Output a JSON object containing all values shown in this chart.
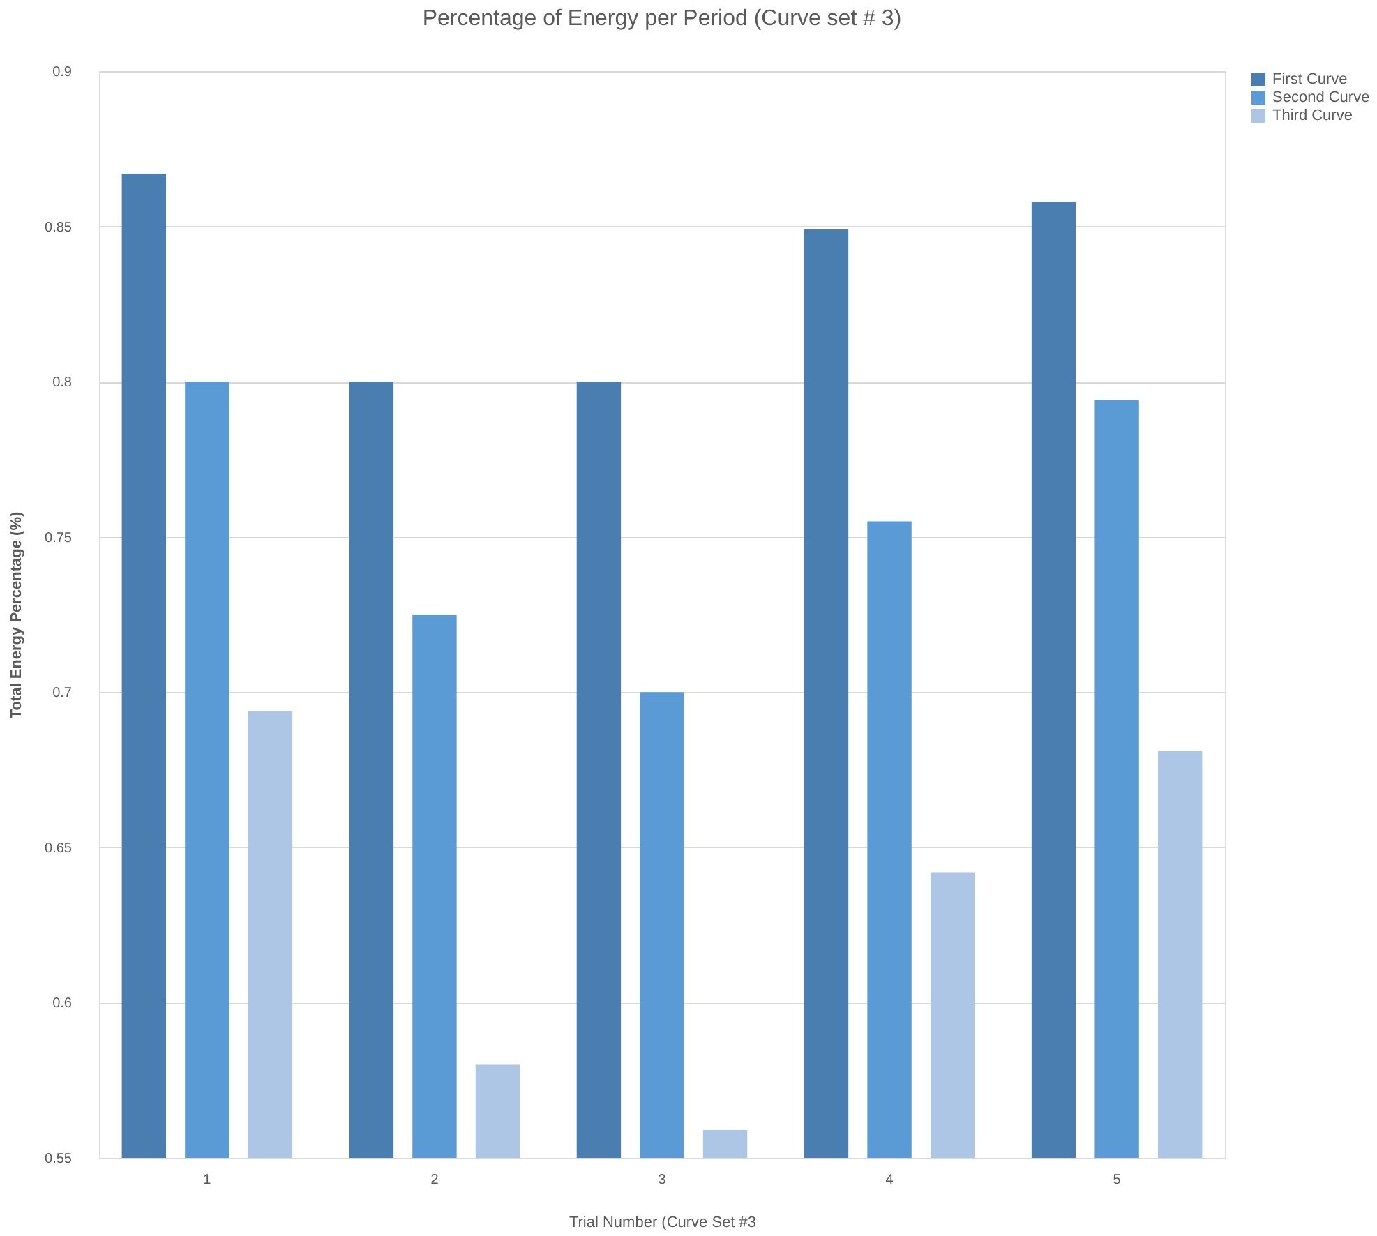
{
  "chart_data": {
    "type": "bar",
    "title": "Percentage of Energy per Period (Curve set # 3)",
    "xlabel": "Trial Number (Curve Set #3",
    "ylabel": "Total Energy Percentage (%)",
    "categories": [
      "1",
      "2",
      "3",
      "4",
      "5"
    ],
    "series": [
      {
        "name": "First Curve",
        "color": "#4a7eb0",
        "values": [
          0.867,
          0.8,
          0.8,
          0.849,
          0.858
        ]
      },
      {
        "name": "Second Curve",
        "color": "#5b9bd5",
        "values": [
          0.8,
          0.725,
          0.7,
          0.755,
          0.794
        ]
      },
      {
        "name": "Third Curve",
        "color": "#adc6e6",
        "values": [
          0.694,
          0.58,
          0.559,
          0.642,
          0.681
        ]
      }
    ],
    "ylim": [
      0.55,
      0.9
    ],
    "yticks": [
      0.55,
      0.6,
      0.65,
      0.7,
      0.75,
      0.8,
      0.85,
      0.9
    ],
    "grid": "y",
    "legend": "right"
  }
}
